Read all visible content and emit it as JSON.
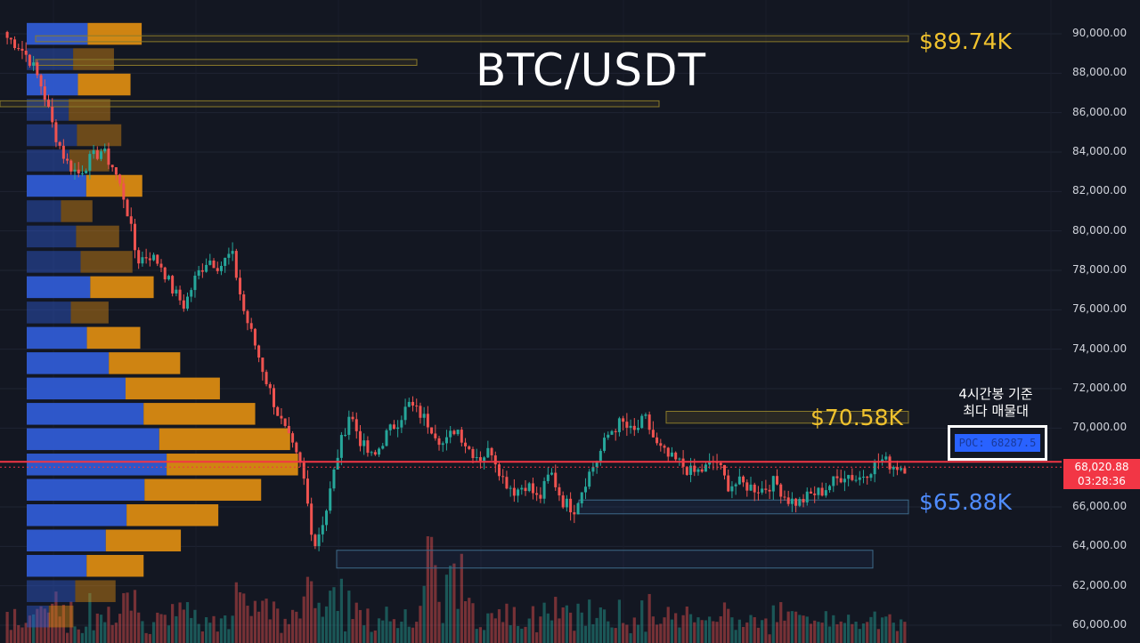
{
  "chart_data": {
    "type": "candlestick",
    "title": "BTC/USDT",
    "ylim": [
      59500,
      90800
    ],
    "y_ticks": [
      "90,000.00",
      "88,000.00",
      "86,000.00",
      "84,000.00",
      "82,000.00",
      "80,000.00",
      "78,000.00",
      "76,000.00",
      "74,000.00",
      "72,000.00",
      "70,000.00",
      "66,000.00",
      "64,000.00",
      "62,000.00",
      "60,000.00"
    ],
    "y_tick_values": [
      90000,
      88000,
      86000,
      84000,
      82000,
      80000,
      78000,
      76000,
      74000,
      72000,
      70000,
      66000,
      64000,
      62000,
      60000
    ],
    "current_price": "68,020.88",
    "countdown": "03:28:36",
    "current_price_value": 68020.88,
    "levels": [
      {
        "label": "$89.74K",
        "value": 89740,
        "color": "#f0c22e"
      },
      {
        "label": "$70.58K",
        "value": 70580,
        "color": "#f0c22e"
      },
      {
        "label": "$65.88K",
        "value": 65880,
        "color": "#4f8cff"
      }
    ],
    "poc_note": [
      "4시간봉 기준",
      "최다 매물대"
    ],
    "poc_label": "POC: 68287.5",
    "poc_value": 68287.5,
    "close_path": [
      89800,
      89400,
      88600,
      87200,
      85000,
      83500,
      82900,
      83600,
      84100,
      83200,
      81500,
      78500,
      78800,
      78300,
      77000,
      76200,
      77700,
      78600,
      78200,
      78900,
      76000,
      74200,
      72300,
      70600,
      69200,
      67800,
      64000,
      65800,
      68700,
      70800,
      69200,
      68400,
      69600,
      70300,
      71200,
      70700,
      70000,
      69100,
      70100,
      69000,
      68500,
      68900,
      67400,
      66800,
      67200,
      66300,
      67800,
      66300,
      65900,
      67400,
      68500,
      69800,
      70300,
      69700,
      70500,
      69100,
      68500,
      68200,
      67700,
      67900,
      68400,
      67100,
      67200,
      67000,
      66900,
      67300,
      66400,
      66200,
      66600,
      66800,
      67300,
      67700,
      67400,
      67900,
      68400,
      68100,
      68020
    ]
  },
  "colors": {
    "up": "#26a69a",
    "down": "#ef5350",
    "background": "#131722",
    "price_line": "#f23645",
    "vp_blue": "#2f5bd3",
    "vp_orange": "#d98a12"
  }
}
